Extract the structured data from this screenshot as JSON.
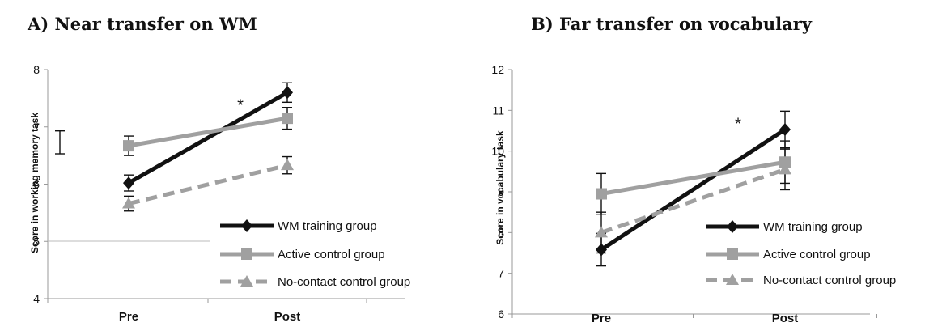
{
  "chart_data": [
    {
      "type": "line",
      "title": "A) Near transfer on WM",
      "ylabel": "Score in working memory task",
      "xlabel": "",
      "categories": [
        "Pre",
        "Post"
      ],
      "ylim": [
        4,
        8
      ],
      "yticks": [
        "4",
        "5",
        "6",
        "7",
        "8"
      ],
      "grid": false,
      "legend_position": "bottom-right",
      "series": [
        {
          "name": "WM training group",
          "values": [
            6.02,
            7.6
          ],
          "errors": [
            0.14,
            0.17
          ],
          "color": "#111111",
          "marker": "diamond",
          "dash": false
        },
        {
          "name": "Active control group",
          "values": [
            6.67,
            7.15
          ],
          "errors": [
            0.17,
            0.19
          ],
          "color": "#a0a0a0",
          "marker": "square",
          "dash": false
        },
        {
          "name": "No-contact control group",
          "values": [
            5.66,
            6.33
          ],
          "errors": [
            0.13,
            0.15
          ],
          "color": "#a0a0a0",
          "marker": "triangle",
          "dash": true
        }
      ],
      "standalone_error_bar": {
        "center": 6.73,
        "error": 0.2
      },
      "annotations": [
        {
          "text": "*",
          "category": "Post",
          "y": 7.4
        }
      ]
    },
    {
      "type": "line",
      "title": "B) Far transfer on vocabulary",
      "ylabel": "Score in vocabulary task",
      "xlabel": "",
      "categories": [
        "Pre",
        "Post"
      ],
      "ylim": [
        6,
        12
      ],
      "yticks": [
        "6",
        "7",
        "8",
        "9",
        "10",
        "11",
        "12"
      ],
      "grid": false,
      "legend_position": "bottom-right",
      "series": [
        {
          "name": "WM training group",
          "values": [
            7.58,
            10.53
          ],
          "errors": [
            0.4,
            0.45
          ],
          "color": "#111111",
          "marker": "diamond",
          "dash": false
        },
        {
          "name": "Active control group",
          "values": [
            8.95,
            9.73
          ],
          "errors": [
            0.5,
            0.52
          ],
          "color": "#a0a0a0",
          "marker": "square",
          "dash": false
        },
        {
          "name": "No-contact control group",
          "values": [
            8.0,
            9.55
          ],
          "errors": [
            0.5,
            0.5
          ],
          "color": "#a0a0a0",
          "marker": "triangle",
          "dash": true
        }
      ],
      "annotations": [
        {
          "text": "*",
          "category": "Post",
          "y": 10.7
        }
      ]
    }
  ]
}
